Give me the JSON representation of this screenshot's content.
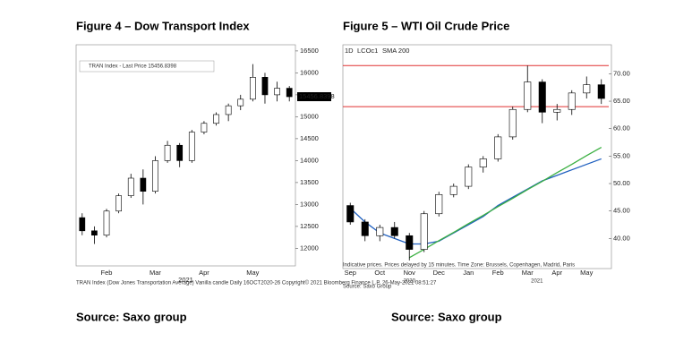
{
  "chart_data": [
    {
      "type": "candlestick",
      "title": "Figure 4 – Dow Transport Index",
      "legend": "TRAN Index - Last Price 15456.8398",
      "credit": "TRAN Index (Dow Jones Transportation Average) Vanilla candle Daily 16OCT2020-26 Copyright© 2021 Bloomberg Finance L.P. 26-May-2021 08:51:27",
      "source": "Source: Saxo group",
      "x_label": "2021",
      "categories": [
        null,
        null,
        "Feb",
        null,
        null,
        null,
        "Mar",
        null,
        null,
        null,
        "Apr",
        null,
        null,
        null,
        "May",
        null,
        null,
        null
      ],
      "open": [
        12700,
        12400,
        12300,
        12850,
        13200,
        13600,
        13300,
        14000,
        14350,
        14000,
        14650,
        14850,
        15050,
        15250,
        15400,
        15900,
        15500,
        15650
      ],
      "high": [
        12800,
        12500,
        12900,
        13250,
        13700,
        13800,
        14100,
        14450,
        14400,
        14700,
        14900,
        15100,
        15300,
        15500,
        16200,
        16000,
        15800,
        15700
      ],
      "low": [
        12300,
        12100,
        12250,
        12800,
        13150,
        13000,
        13250,
        13950,
        13850,
        13950,
        14600,
        14800,
        14900,
        15150,
        15350,
        15300,
        15350,
        15350
      ],
      "close": [
        12400,
        12300,
        12850,
        13200,
        13600,
        13300,
        14000,
        14350,
        14000,
        14650,
        14850,
        15050,
        15250,
        15400,
        15900,
        15500,
        15650,
        15456.8398
      ],
      "ylim": [
        11600,
        16600
      ],
      "yticks": [
        12000,
        12500,
        13000,
        13500,
        14000,
        14500,
        15000,
        15500,
        16000,
        16500
      ],
      "up_color": "#ffffff",
      "down_color": "#000000"
    },
    {
      "type": "candlestick",
      "title": "Figure 5 – WTI Oil Crude Price",
      "header": [
        "1D",
        "LCOc1",
        "SMA 200"
      ],
      "credit": "Indicative prices. Prices delayed by 15 minutes.   Time Zone: Brussels, Copenhagen, Madrid, Paris",
      "caption_source": "Source: Saxo Group",
      "source": "Source: Saxo group",
      "x_years": [
        "2020",
        "2021"
      ],
      "categories": [
        "Sep",
        null,
        "Oct",
        null,
        "Nov",
        null,
        "Dec",
        null,
        "Jan",
        null,
        "Feb",
        null,
        "Mar",
        null,
        "Apr",
        null,
        "May",
        null
      ],
      "open": [
        46,
        43,
        40.5,
        42,
        40.5,
        38,
        44.5,
        48,
        49.5,
        53,
        54.5,
        58.5,
        63.5,
        68.5,
        63,
        63.5,
        66.5,
        68
      ],
      "high": [
        46.5,
        43.5,
        42.5,
        43,
        41,
        45,
        48.5,
        50,
        53.5,
        55,
        59,
        64,
        71.5,
        69,
        64.5,
        67,
        69.5,
        69
      ],
      "low": [
        42.5,
        39.5,
        39.5,
        40,
        36,
        37.5,
        44,
        47.5,
        49,
        52,
        54,
        58,
        63,
        61,
        61.5,
        62.5,
        65.5,
        64.5
      ],
      "close": [
        43,
        40.5,
        42,
        40.5,
        38,
        44.5,
        48,
        49.5,
        53,
        54.5,
        58.5,
        63.5,
        68.5,
        63,
        63.5,
        66.5,
        68,
        65.5
      ],
      "series": [
        {
          "name": "SMA 200",
          "color": "#1f5fbf",
          "values": [
            45.5,
            43,
            41,
            40,
            39,
            39,
            39.5,
            41,
            42.5,
            44,
            46,
            47.5,
            49,
            50.5,
            51.5,
            52.5,
            53.5,
            54.5
          ]
        },
        {
          "name": "Trend",
          "color": "#3cb043",
          "values": [
            null,
            null,
            null,
            null,
            36.5,
            38,
            39.6,
            41.1,
            42.7,
            44.2,
            45.8,
            47.3,
            48.9,
            50.4,
            52,
            53.5,
            55.1,
            56.6
          ]
        }
      ],
      "hlines": [
        71.5,
        64
      ],
      "hline_color": "#e03030",
      "ylim": [
        35,
        73
      ],
      "yticks": [
        {
          "value": 40,
          "label": "40.00"
        },
        {
          "value": 45,
          "label": "45.00"
        },
        {
          "value": 50,
          "label": "50.00"
        },
        {
          "value": 55,
          "label": "55.00"
        },
        {
          "value": 60,
          "label": "60.00"
        },
        {
          "value": 65,
          "label": "65.00"
        },
        {
          "value": 70,
          "label": "70.00"
        }
      ],
      "up_color": "#ffffff",
      "down_color": "#000000"
    }
  ]
}
